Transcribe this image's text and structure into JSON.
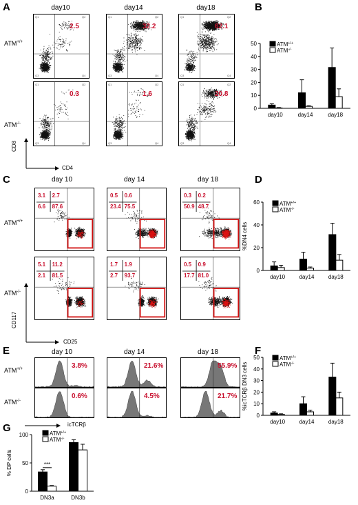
{
  "panels": {
    "A": "A",
    "B": "B",
    "C": "C",
    "D": "D",
    "E": "E",
    "F": "F",
    "G": "G"
  },
  "days": [
    "day10",
    "day14",
    "day18"
  ],
  "days_spaced": [
    "day 10",
    "day 14",
    "day 18"
  ],
  "genotypes": {
    "wt": "ATM",
    "wt_sup": "+/+",
    "ko": "ATM",
    "ko_sup": "-/-"
  },
  "A": {
    "xlabel": "CD4",
    "ylabel": "CD8",
    "wt_pct": [
      "2.5",
      "32.2",
      "62.1"
    ],
    "ko_pct": [
      "0.3",
      "1.6",
      "20.8"
    ],
    "quadrants": [
      "Q1",
      "Q2",
      "Q3",
      "Q4"
    ]
  },
  "C": {
    "xlabel": "CD25",
    "ylabel": "CD117",
    "wt": [
      [
        "3.1",
        "2.7",
        "6.6",
        "87.6"
      ],
      [
        "0.5",
        "0.6",
        "23.4",
        "75.5"
      ],
      [
        "0.3",
        "0.2",
        "50.9",
        "48.7"
      ]
    ],
    "ko": [
      [
        "5.1",
        "11.2",
        "2.1",
        "81.5"
      ],
      [
        "1.7",
        "1.9",
        "2.7",
        "93.7"
      ],
      [
        "0.5",
        "0.9",
        "17.7",
        "81.0"
      ]
    ]
  },
  "E": {
    "xlabel": "icTCRβ",
    "wt_pct": [
      "3.8%",
      "21.6%",
      "55.9%"
    ],
    "ko_pct": [
      "0.6%",
      "4.5%",
      "21.7%"
    ]
  },
  "chart_data": [
    {
      "panel": "B",
      "type": "bar",
      "categories": [
        "day10",
        "day14",
        "day18"
      ],
      "series": [
        {
          "name": "ATM+/+",
          "values": [
            2.5,
            12,
            31.5
          ],
          "errors": [
            1,
            10,
            15
          ],
          "color": "#000000"
        },
        {
          "name": "ATM-/-",
          "values": [
            0.3,
            1.5,
            9
          ],
          "errors": [
            0.3,
            0.5,
            6
          ],
          "color": "#ffffff"
        }
      ],
      "title": "",
      "xlabel": "",
      "ylabel": "",
      "ylim": [
        0,
        50
      ],
      "yticks": [
        "0",
        "10",
        "20",
        "30",
        "40",
        "50"
      ],
      "legend": "top-left",
      "grid": false
    },
    {
      "panel": "D",
      "type": "bar",
      "categories": [
        "day10",
        "day14",
        "day18"
      ],
      "series": [
        {
          "name": "ATM+/+",
          "values": [
            4,
            10,
            31.5
          ],
          "errors": [
            3.5,
            6,
            10
          ],
          "color": "#000000"
        },
        {
          "name": "ATM-/-",
          "values": [
            2.5,
            2,
            9
          ],
          "errors": [
            2,
            1,
            5
          ],
          "color": "#ffffff"
        }
      ],
      "title": "",
      "xlabel": "",
      "ylabel": "%DN4 cells",
      "ylim": [
        0,
        60
      ],
      "yticks": [
        "0",
        "20",
        "40",
        "60"
      ],
      "legend": "top-left",
      "grid": false
    },
    {
      "panel": "F",
      "type": "bar",
      "categories": [
        "day10",
        "day14",
        "day18"
      ],
      "series": [
        {
          "name": "ATM+/+",
          "values": [
            2,
            10,
            33
          ],
          "errors": [
            1,
            6,
            12
          ],
          "color": "#000000"
        },
        {
          "name": "ATM-/-",
          "values": [
            0.8,
            3,
            15
          ],
          "errors": [
            0.5,
            1.5,
            5
          ],
          "color": "#ffffff"
        }
      ],
      "title": "",
      "xlabel": "",
      "ylabel": "%icTCRβ DN3 cells",
      "ylim": [
        0,
        50
      ],
      "yticks": [
        "0",
        "10",
        "20",
        "30",
        "40",
        "50"
      ],
      "legend": "top-left",
      "grid": false
    },
    {
      "panel": "G",
      "type": "bar",
      "categories": [
        "DN3a",
        "DN3b"
      ],
      "series": [
        {
          "name": "ATM+/+",
          "values": [
            34,
            86
          ],
          "errors": [
            4,
            5
          ],
          "color": "#000000"
        },
        {
          "name": "ATM-/-",
          "values": [
            9,
            73
          ],
          "errors": [
            1,
            10
          ],
          "color": "#ffffff"
        }
      ],
      "title": "",
      "xlabel": "",
      "ylabel": "% DP cells",
      "ylim": [
        0,
        100
      ],
      "yticks": [
        "0",
        "50",
        "100"
      ],
      "legend": "top-left",
      "grid": false,
      "annotation": "***"
    }
  ]
}
